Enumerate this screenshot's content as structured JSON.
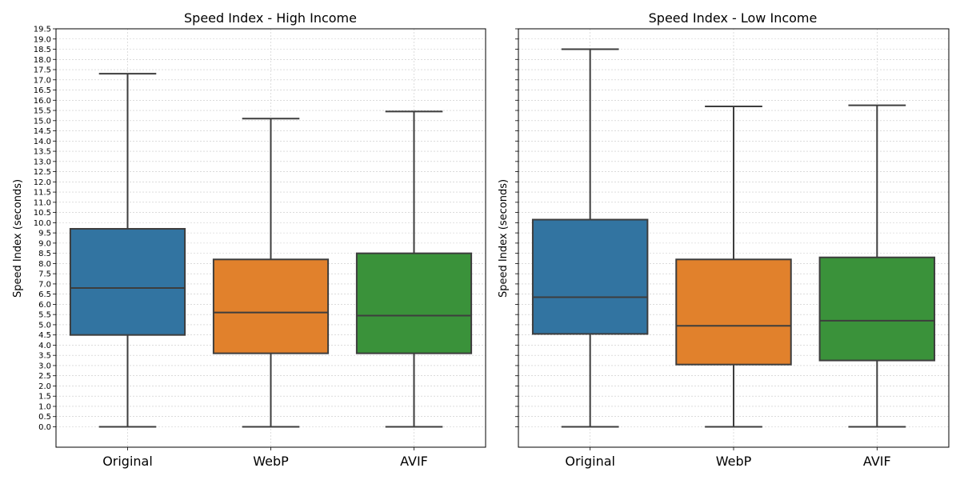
{
  "chart_data": [
    {
      "type": "box",
      "title": "Speed Index - High Income",
      "ylabel": "Speed Index (seconds)",
      "xlabel": "",
      "ylim": [
        -1.0,
        19.5
      ],
      "ytick_step": 0.5,
      "show_ytick_labels": true,
      "grid": true,
      "categories": [
        "Original",
        "WebP",
        "AVIF"
      ],
      "boxes": [
        {
          "category": "Original",
          "whisker_low": 0.0,
          "q1": 4.5,
          "median": 6.8,
          "q3": 9.7,
          "whisker_high": 17.3
        },
        {
          "category": "WebP",
          "whisker_low": 0.0,
          "q1": 3.6,
          "median": 5.6,
          "q3": 8.2,
          "whisker_high": 15.1
        },
        {
          "category": "AVIF",
          "whisker_low": 0.0,
          "q1": 3.6,
          "median": 5.45,
          "q3": 8.5,
          "whisker_high": 15.45
        }
      ]
    },
    {
      "type": "box",
      "title": "Speed Index - Low Income",
      "ylabel": "Speed Index (seconds)",
      "xlabel": "",
      "ylim": [
        -1.0,
        19.5
      ],
      "ytick_step": 0.5,
      "show_ytick_labels": false,
      "grid": true,
      "categories": [
        "Original",
        "WebP",
        "AVIF"
      ],
      "boxes": [
        {
          "category": "Original",
          "whisker_low": 0.0,
          "q1": 4.55,
          "median": 6.35,
          "q3": 10.15,
          "whisker_high": 18.5
        },
        {
          "category": "WebP",
          "whisker_low": 0.0,
          "q1": 3.05,
          "median": 4.95,
          "q3": 8.2,
          "whisker_high": 15.7
        },
        {
          "category": "AVIF",
          "whisker_low": 0.0,
          "q1": 3.25,
          "median": 5.2,
          "q3": 8.3,
          "whisker_high": 15.75
        }
      ]
    }
  ],
  "colors": {
    "Original": "#3274a1",
    "WebP": "#e1812c",
    "AVIF": "#3a923a",
    "line": "#3d3d3d",
    "grid": "#c8c8c8"
  }
}
